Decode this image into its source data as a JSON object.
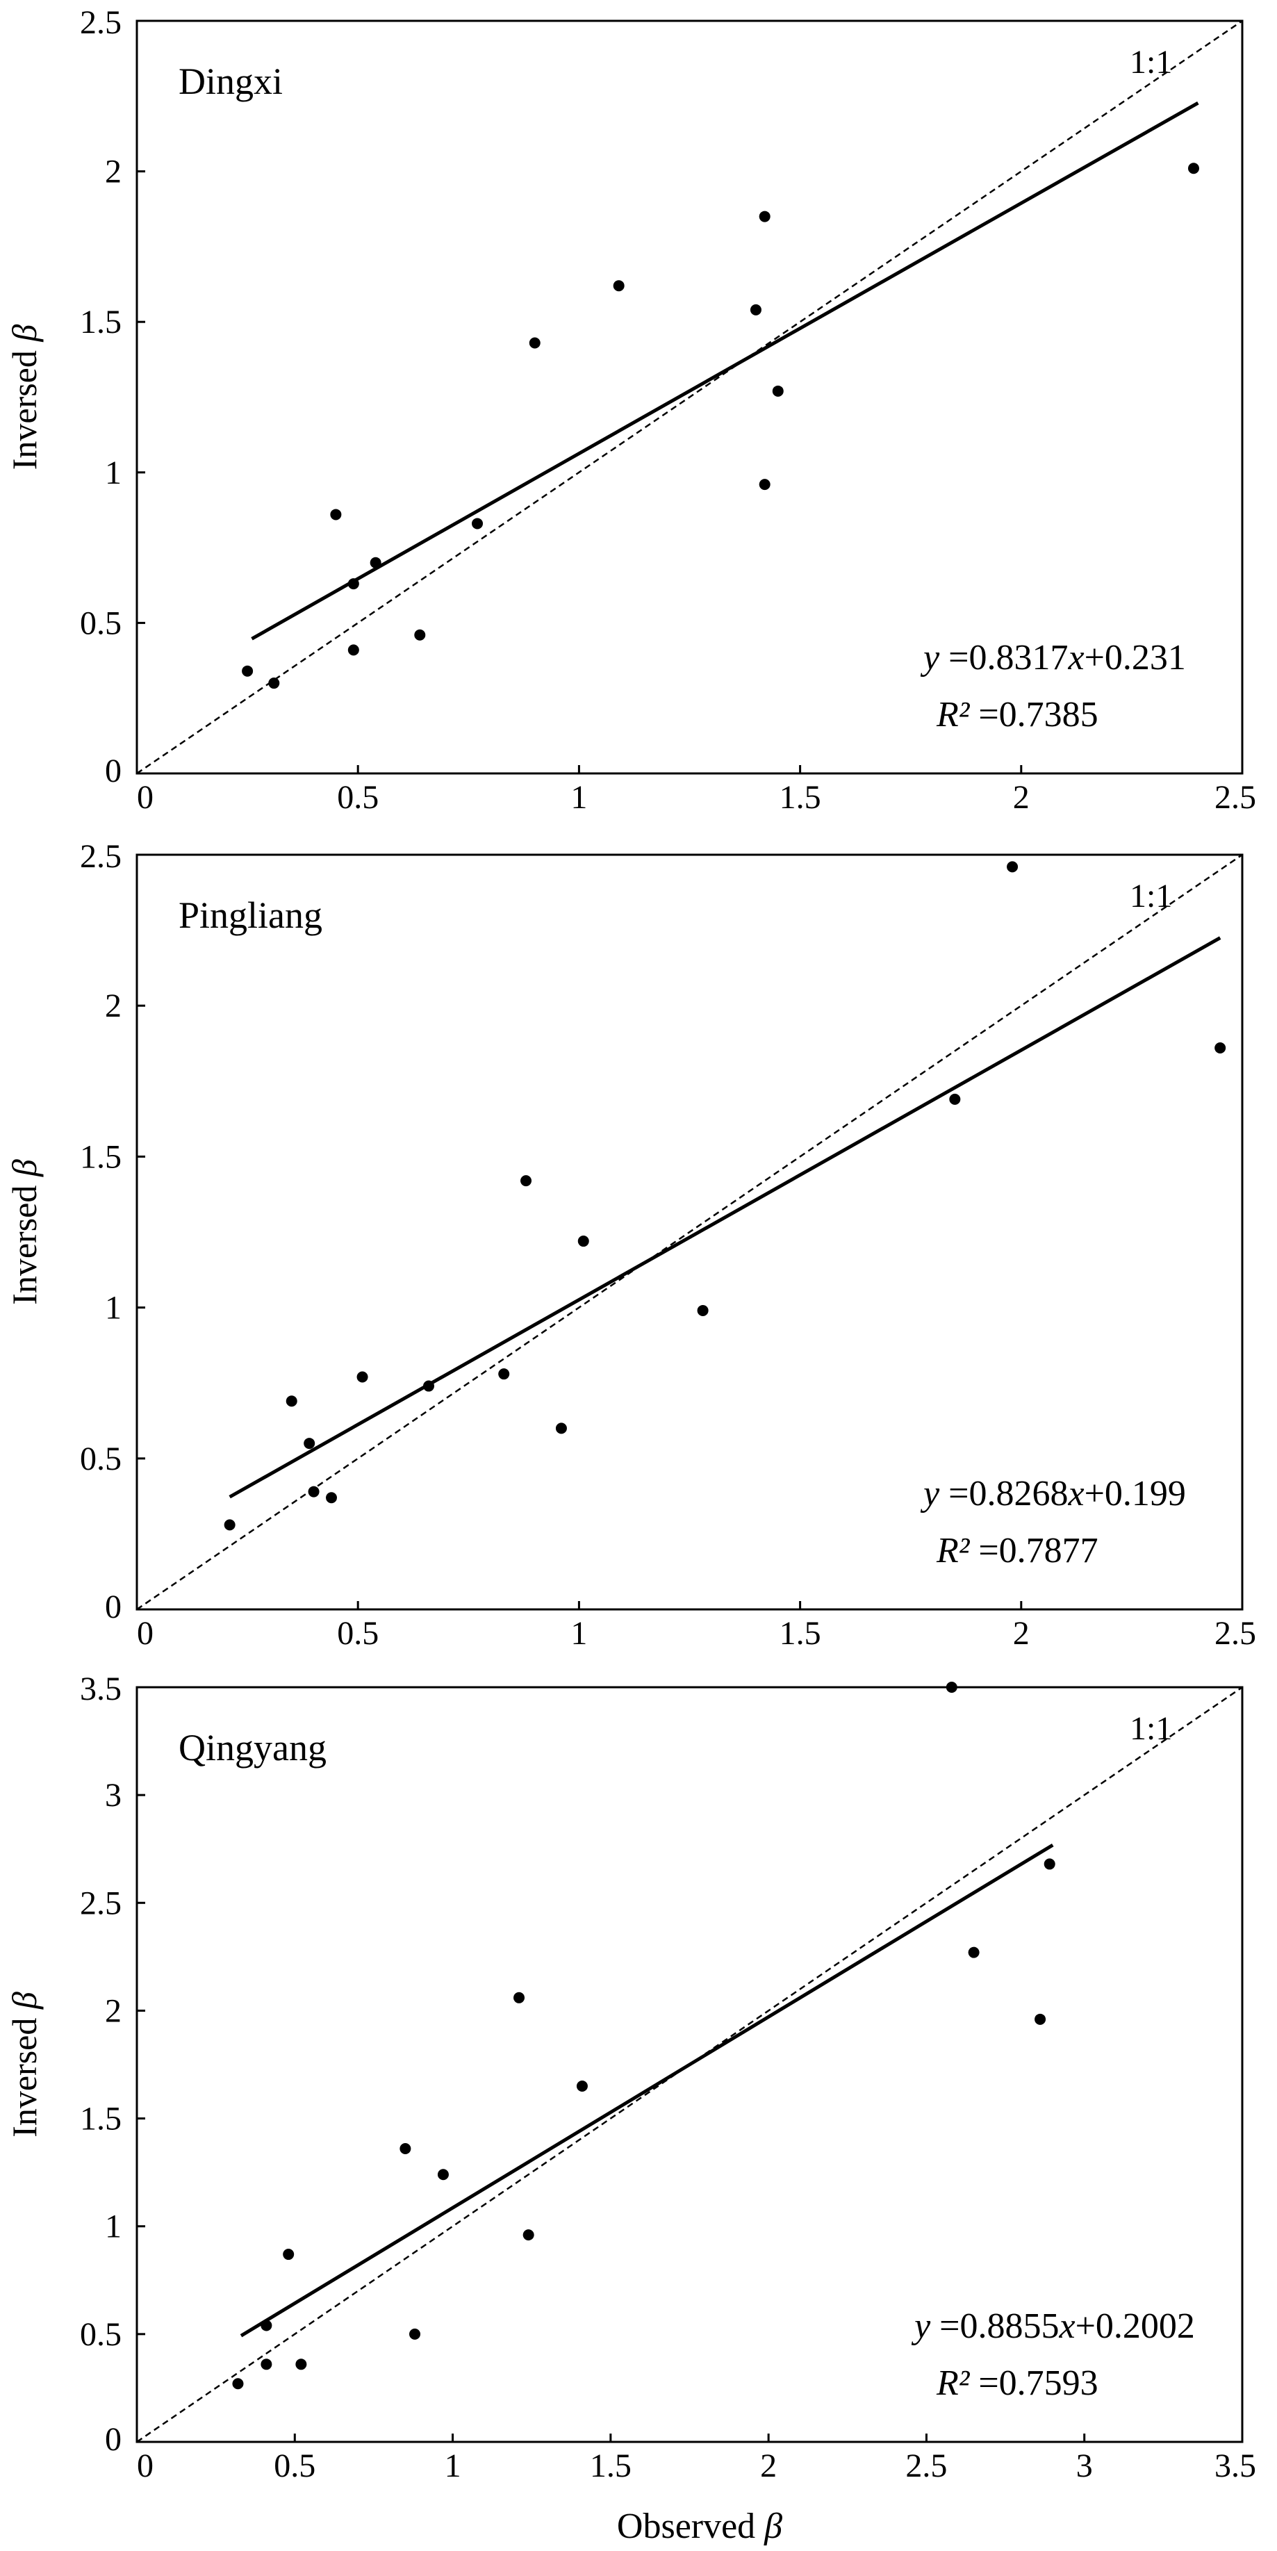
{
  "shared_xlabel": {
    "prefix": "Observed ",
    "symbol": "β"
  },
  "chart_data": [
    {
      "type": "scatter",
      "site_label": "Dingxi",
      "xlabel": "",
      "ylabel_prefix": "Inversed ",
      "ylabel_symbol": "β",
      "xlim": [
        0,
        2.5
      ],
      "ylim": [
        0,
        2.5
      ],
      "xticks": [
        "0",
        "0.5",
        "1",
        "1.5",
        "2",
        "2.5"
      ],
      "yticks": [
        "0",
        "0.5",
        "1",
        "1.5",
        "2",
        "2.5"
      ],
      "one_to_one_label": "1:1",
      "fit": {
        "slope": 0.8317,
        "intercept": 0.231,
        "x_range": [
          0.26,
          2.4
        ]
      },
      "equation": {
        "var_y": "y",
        "text1": " =0.8317",
        "var_x": "x",
        "text2": "+0.231"
      },
      "r2": {
        "label": "R²",
        "value": " =0.7385"
      },
      "points": [
        [
          0.25,
          0.34
        ],
        [
          0.31,
          0.3
        ],
        [
          0.45,
          0.86
        ],
        [
          0.49,
          0.41
        ],
        [
          0.49,
          0.63
        ],
        [
          0.54,
          0.7
        ],
        [
          0.64,
          0.46
        ],
        [
          0.77,
          0.83
        ],
        [
          0.9,
          1.43
        ],
        [
          1.09,
          1.62
        ],
        [
          1.4,
          1.54
        ],
        [
          1.42,
          1.85
        ],
        [
          1.42,
          0.96
        ],
        [
          1.45,
          1.27
        ],
        [
          2.39,
          2.01
        ]
      ]
    },
    {
      "type": "scatter",
      "site_label": "Pingliang",
      "xlabel": "",
      "ylabel_prefix": "Inversed ",
      "ylabel_symbol": "β",
      "xlim": [
        0,
        2.5
      ],
      "ylim": [
        0,
        2.5
      ],
      "xticks": [
        "0",
        "0.5",
        "1",
        "1.5",
        "2",
        "2.5"
      ],
      "yticks": [
        "0",
        "0.5",
        "1",
        "1.5",
        "2",
        "2.5"
      ],
      "one_to_one_label": "1:1",
      "fit": {
        "slope": 0.8268,
        "intercept": 0.199,
        "x_range": [
          0.21,
          2.45
        ]
      },
      "equation": {
        "var_y": "y",
        "text1": " =0.8268",
        "var_x": "x",
        "text2": "+0.199"
      },
      "r2": {
        "label": "R²",
        "value": " =0.7877"
      },
      "points": [
        [
          0.21,
          0.28
        ],
        [
          0.35,
          0.69
        ],
        [
          0.39,
          0.55
        ],
        [
          0.4,
          0.39
        ],
        [
          0.44,
          0.37
        ],
        [
          0.51,
          0.77
        ],
        [
          0.66,
          0.74
        ],
        [
          0.83,
          0.78
        ],
        [
          0.88,
          1.42
        ],
        [
          0.96,
          0.6
        ],
        [
          1.01,
          1.22
        ],
        [
          1.28,
          0.99
        ],
        [
          1.85,
          1.69
        ],
        [
          1.98,
          2.46
        ],
        [
          2.45,
          1.86
        ]
      ]
    },
    {
      "type": "scatter",
      "site_label": "Qingyang",
      "xlabel": "",
      "ylabel_prefix": "Inversed ",
      "ylabel_symbol": "β",
      "xlim": [
        0,
        3.5
      ],
      "ylim": [
        0,
        3.5
      ],
      "xticks": [
        "0",
        "0.5",
        "1",
        "1.5",
        "2",
        "2.5",
        "3",
        "3.5"
      ],
      "yticks": [
        "0",
        "0.5",
        "1",
        "1.5",
        "2",
        "2.5",
        "3",
        "3.5"
      ],
      "one_to_one_label": "1:1",
      "fit": {
        "slope": 0.8855,
        "intercept": 0.2002,
        "x_range": [
          0.33,
          2.9
        ]
      },
      "equation": {
        "var_y": "y",
        "text1": " =0.8855",
        "var_x": "x",
        "text2": "+0.2002"
      },
      "r2": {
        "label": "R²",
        "value": " =0.7593"
      },
      "points": [
        [
          0.32,
          0.27
        ],
        [
          0.41,
          0.54
        ],
        [
          0.41,
          0.36
        ],
        [
          0.48,
          0.87
        ],
        [
          0.52,
          0.36
        ],
        [
          0.85,
          1.36
        ],
        [
          0.88,
          0.5
        ],
        [
          0.97,
          1.24
        ],
        [
          1.21,
          2.06
        ],
        [
          1.24,
          0.96
        ],
        [
          1.41,
          1.65
        ],
        [
          2.58,
          3.5
        ],
        [
          2.65,
          2.27
        ],
        [
          2.86,
          1.96
        ],
        [
          2.89,
          2.68
        ]
      ]
    }
  ]
}
